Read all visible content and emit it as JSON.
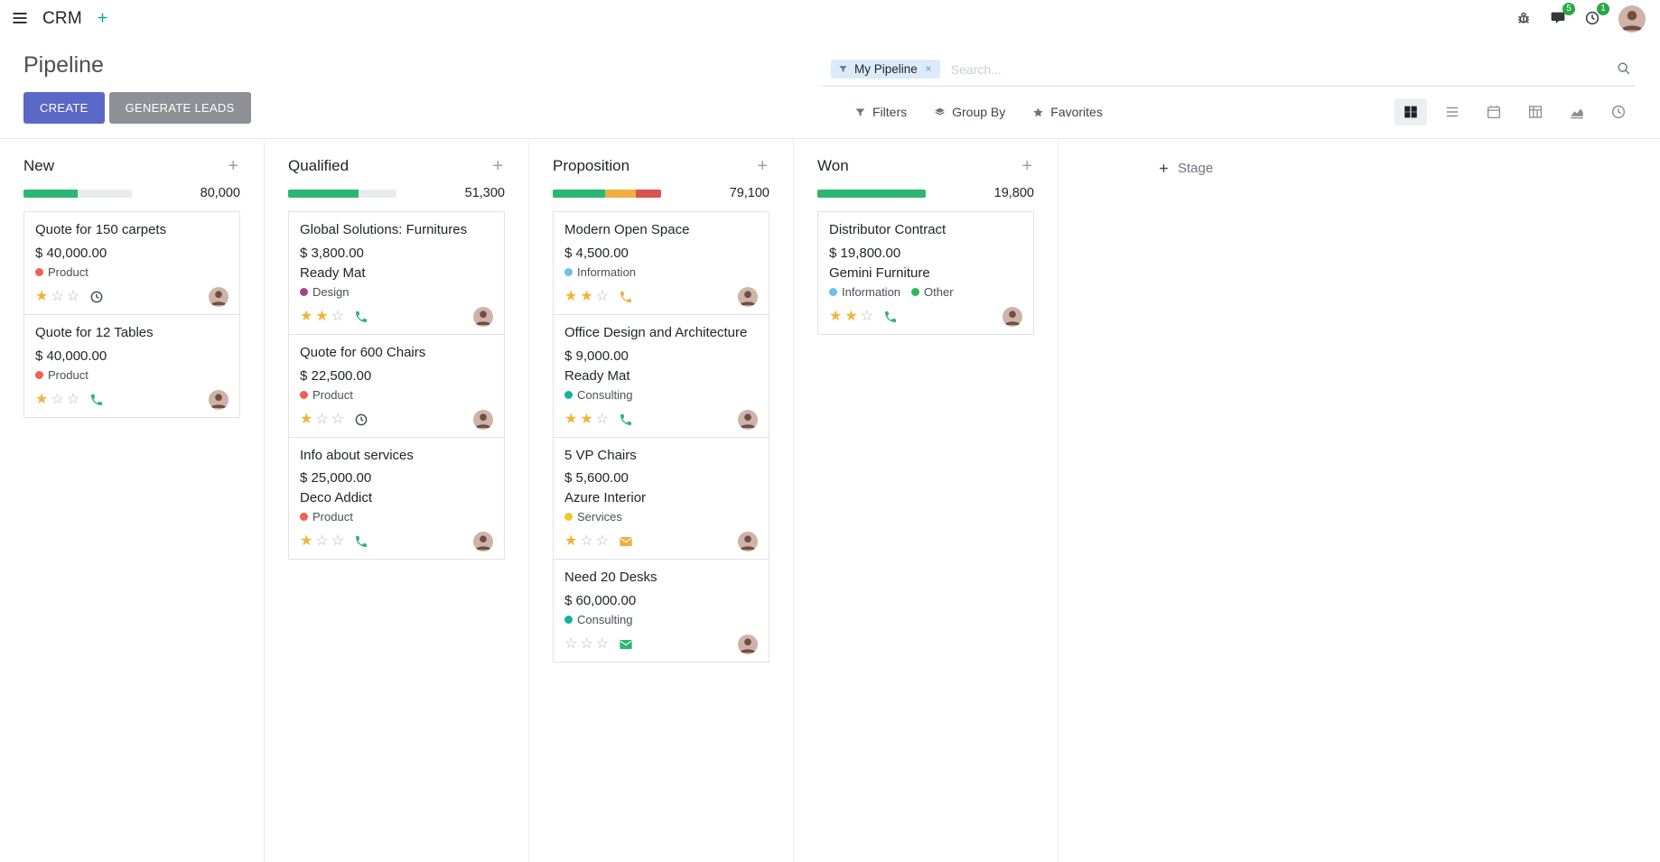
{
  "navbar": {
    "app_name": "CRM",
    "messages_badge": "5",
    "activities_badge": "1"
  },
  "control_panel": {
    "title": "Pipeline",
    "create_label": "CREATE",
    "generate_leads_label": "GENERATE LEADS",
    "search": {
      "facet_label": "My Pipeline",
      "placeholder": "Search..."
    },
    "search_buttons": [
      {
        "label": "Filters",
        "icon": "filter-icon"
      },
      {
        "label": "Group By",
        "icon": "layers-icon"
      },
      {
        "label": "Favorites",
        "icon": "star-icon"
      }
    ],
    "view_switcher": [
      {
        "name": "kanban",
        "active": true
      },
      {
        "name": "list",
        "active": false
      },
      {
        "name": "calendar",
        "active": false
      },
      {
        "name": "pivot",
        "active": false
      },
      {
        "name": "graph",
        "active": false
      },
      {
        "name": "activity",
        "active": false
      }
    ]
  },
  "add_stage": {
    "label": "Stage"
  },
  "colors": {
    "primary": "#5b68c8",
    "secondary_button": "#8e9095",
    "progress_green": "#2bb673",
    "progress_yellow": "#efaf42",
    "progress_red": "#d9534f",
    "star_gold": "#efb339",
    "badge_green": "#28a745",
    "plus_teal": "#00a09d"
  },
  "columns": [
    {
      "name": "New",
      "counter": "80,000",
      "progress": [
        {
          "color_key": "progress_green",
          "pct": 50
        }
      ],
      "cards": [
        {
          "title": "Quote for 150 carpets",
          "amount": "$ 40,000.00",
          "tags": [
            {
              "label": "Product",
              "color": "#f06050"
            }
          ],
          "stars": 1,
          "activity": {
            "type": "clock",
            "color": "#495057"
          }
        },
        {
          "title": "Quote for 12 Tables",
          "amount": "$ 40,000.00",
          "tags": [
            {
              "label": "Product",
              "color": "#f06050"
            }
          ],
          "stars": 1,
          "activity": {
            "type": "phone",
            "color": "#2bb673"
          }
        }
      ]
    },
    {
      "name": "Qualified",
      "counter": "51,300",
      "progress": [
        {
          "color_key": "progress_green",
          "pct": 65
        }
      ],
      "cards": [
        {
          "title": "Global Solutions: Furnitures",
          "amount": "$ 3,800.00",
          "partner": "Ready Mat",
          "tags": [
            {
              "label": "Design",
              "color": "#a24689"
            }
          ],
          "stars": 2,
          "activity": {
            "type": "phone",
            "color": "#2bb673"
          }
        },
        {
          "title": "Quote for 600 Chairs",
          "amount": "$ 22,500.00",
          "tags": [
            {
              "label": "Product",
              "color": "#f06050"
            }
          ],
          "stars": 1,
          "activity": {
            "type": "clock",
            "color": "#495057"
          }
        },
        {
          "title": "Info about services",
          "amount": "$ 25,000.00",
          "partner": "Deco Addict",
          "tags": [
            {
              "label": "Product",
              "color": "#f06050"
            }
          ],
          "stars": 1,
          "activity": {
            "type": "phone",
            "color": "#2bb673"
          }
        }
      ]
    },
    {
      "name": "Proposition",
      "counter": "79,100",
      "progress": [
        {
          "color_key": "progress_green",
          "pct": 48
        },
        {
          "color_key": "progress_yellow",
          "pct": 29
        },
        {
          "color_key": "progress_red",
          "pct": 23
        }
      ],
      "cards": [
        {
          "title": "Modern Open Space",
          "amount": "$ 4,500.00",
          "tags": [
            {
              "label": "Information",
              "color": "#6cc1ed"
            }
          ],
          "stars": 2,
          "activity": {
            "type": "phone",
            "color": "#efaf42"
          }
        },
        {
          "title": "Office Design and Architecture",
          "amount": "$ 9,000.00",
          "partner": "Ready Mat",
          "tags": [
            {
              "label": "Consulting",
              "color": "#17b29c"
            }
          ],
          "stars": 2,
          "activity": {
            "type": "phone",
            "color": "#2bb673"
          }
        },
        {
          "title": "5 VP Chairs",
          "amount": "$ 5,600.00",
          "partner": "Azure Interior",
          "tags": [
            {
              "label": "Services",
              "color": "#f0c929"
            }
          ],
          "stars": 1,
          "activity": {
            "type": "envelope",
            "color": "#efaf42"
          }
        },
        {
          "title": "Need 20 Desks",
          "amount": "$ 60,000.00",
          "tags": [
            {
              "label": "Consulting",
              "color": "#17b29c"
            }
          ],
          "stars": 0,
          "activity": {
            "type": "envelope",
            "color": "#2bb673"
          }
        }
      ]
    },
    {
      "name": "Won",
      "counter": "19,800",
      "progress": [
        {
          "color_key": "progress_green",
          "pct": 100
        }
      ],
      "cards": [
        {
          "title": "Distributor Contract",
          "amount": "$ 19,800.00",
          "partner": "Gemini Furniture",
          "tags": [
            {
              "label": "Information",
              "color": "#6cc1ed"
            },
            {
              "label": "Other",
              "color": "#2eb85c"
            }
          ],
          "stars": 2,
          "activity": {
            "type": "phone",
            "color": "#2bb673"
          }
        }
      ]
    }
  ]
}
